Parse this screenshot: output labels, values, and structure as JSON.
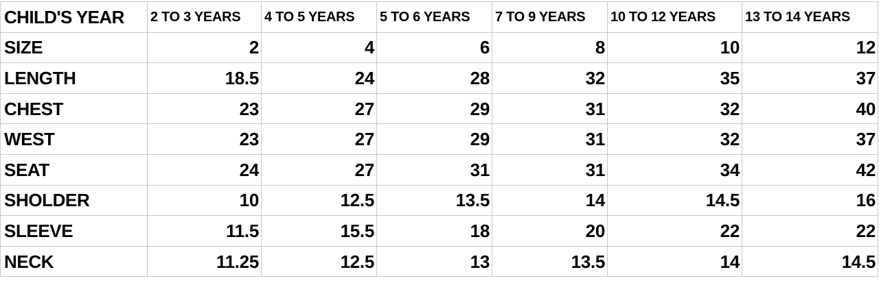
{
  "table": {
    "corner_label": "CHILD'S YEAR",
    "columns": [
      "2 TO 3 YEARS",
      "4 TO 5 YEARS",
      "5 TO 6 YEARS",
      "7 TO 9 YEARS",
      "10 TO 12 YEARS",
      "13 TO 14 YEARS"
    ],
    "rows": [
      {
        "label": "SIZE",
        "values": [
          "2",
          "4",
          "6",
          "8",
          "10",
          "12"
        ]
      },
      {
        "label": "LENGTH",
        "values": [
          "18.5",
          "24",
          "28",
          "32",
          "35",
          "37"
        ]
      },
      {
        "label": "CHEST",
        "values": [
          "23",
          "27",
          "29",
          "31",
          "32",
          "40"
        ]
      },
      {
        "label": "WEST",
        "values": [
          "23",
          "27",
          "29",
          "31",
          "32",
          "37"
        ]
      },
      {
        "label": "SEAT",
        "values": [
          "24",
          "27",
          "31",
          "31",
          "34",
          "42"
        ]
      },
      {
        "label": "SHOLDER",
        "values": [
          "10",
          "12.5",
          "13.5",
          "14",
          "14.5",
          "16"
        ]
      },
      {
        "label": "SLEEVE",
        "values": [
          "11.5",
          "15.5",
          "18",
          "20",
          "22",
          "22"
        ]
      },
      {
        "label": "NECK",
        "values": [
          "11.25",
          "12.5",
          "13",
          "13.5",
          "14",
          "14.5"
        ]
      }
    ]
  },
  "colors": {
    "background": "#ffffff",
    "text": "#000000",
    "grid": "#c8c8c8"
  }
}
